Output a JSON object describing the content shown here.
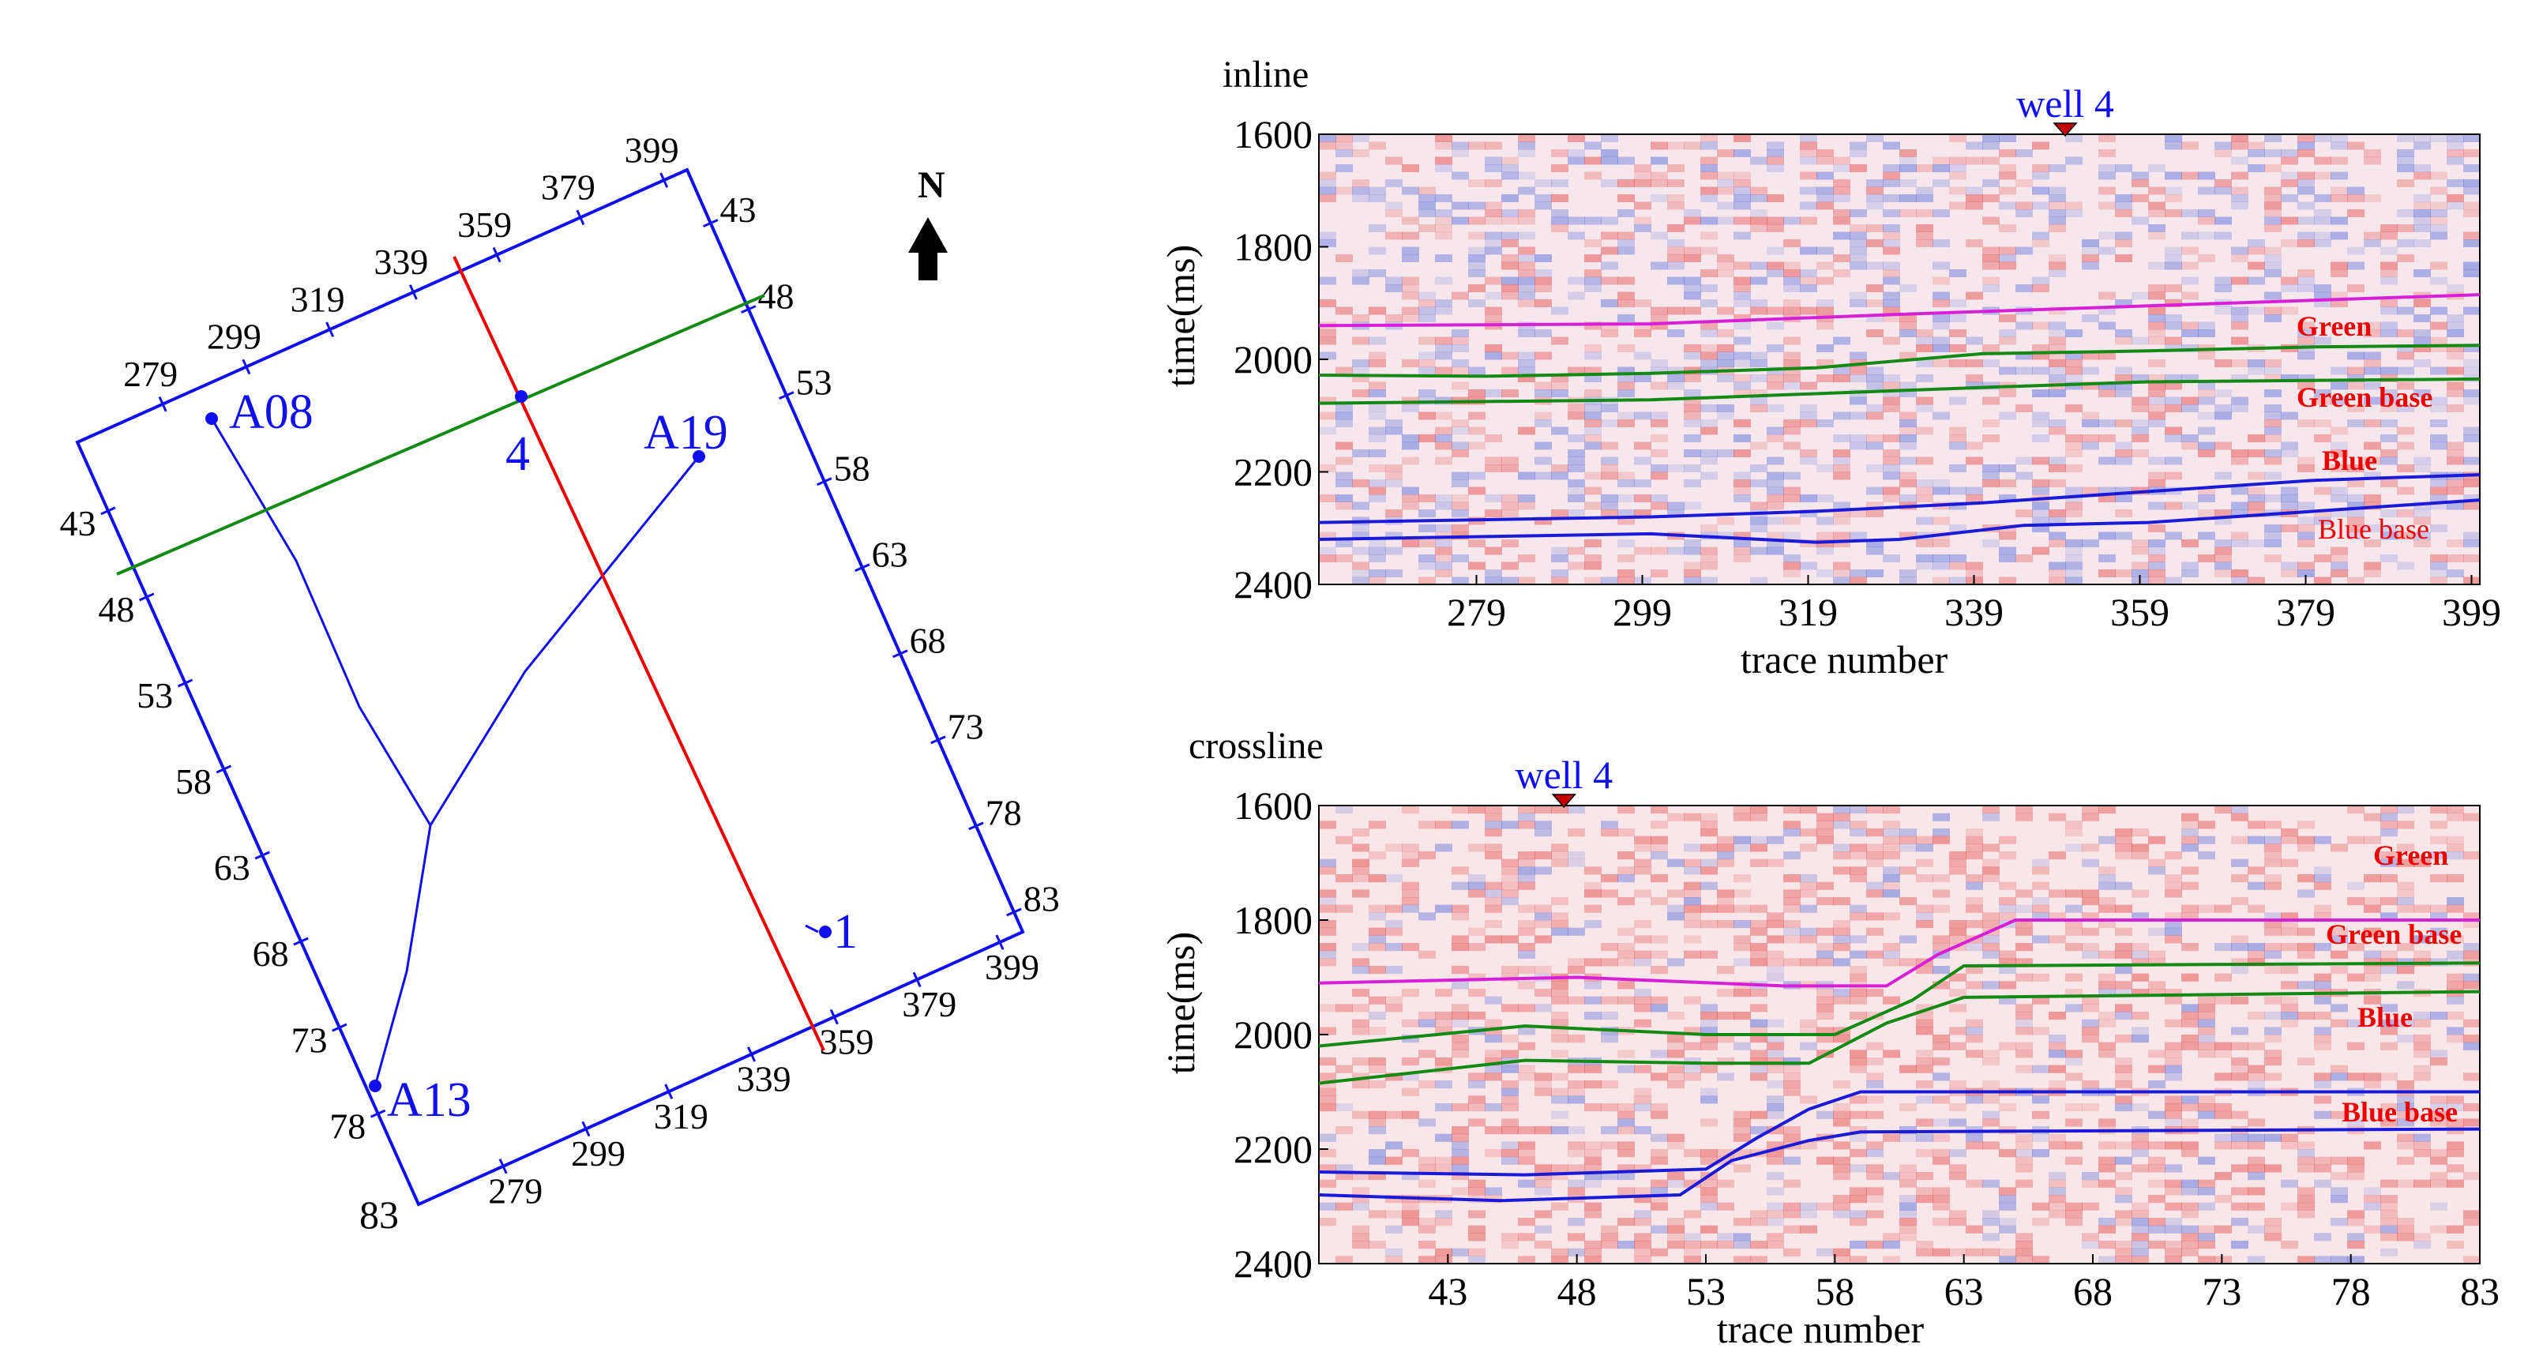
{
  "colors": {
    "blue": "#1010ee",
    "red": "#ee0000",
    "green": "#138a13",
    "magenta": "#d81fd8",
    "dark_blue": "#1a1ad8",
    "black": "#000000",
    "well_marker": "#c40000"
  },
  "map": {
    "north_label": "N",
    "wells": [
      {
        "id": "A08",
        "label": "A08"
      },
      {
        "id": "A19",
        "label": "A19"
      },
      {
        "id": "A13",
        "label": "A13"
      },
      {
        "id": "4",
        "label": "4"
      },
      {
        "id": "1",
        "label": "1"
      }
    ],
    "inline_ticks": [
      "279",
      "299",
      "319",
      "339",
      "359",
      "379",
      "399"
    ],
    "crossline_ticks": [
      "43",
      "48",
      "53",
      "58",
      "63",
      "68",
      "73",
      "78",
      "83"
    ],
    "corner_label": "83"
  },
  "chart_data": [
    {
      "type": "line",
      "panel": "inline",
      "title": "inline",
      "xlabel": "trace number",
      "ylabel": "time(ms)",
      "ylim": [
        1600,
        2400
      ],
      "y_inverted": true,
      "yticks": [
        1600,
        1800,
        2000,
        2200,
        2400
      ],
      "xlim": [
        260,
        400
      ],
      "xticks": [
        279,
        299,
        319,
        339,
        359,
        379,
        399
      ],
      "well_label": "well 4",
      "well_x": 350,
      "legend": [
        "Green",
        "Green base",
        "Blue",
        "Blue base"
      ],
      "series": [
        {
          "name": "Green (magenta horizon)",
          "color_key": "magenta",
          "x": [
            260,
            300,
            330,
            360,
            400
          ],
          "y": [
            1940,
            1937,
            1920,
            1905,
            1885
          ]
        },
        {
          "name": "Green",
          "color_key": "green",
          "x": [
            260,
            280,
            300,
            320,
            340,
            360,
            380,
            400
          ],
          "y": [
            2028,
            2030,
            2025,
            2015,
            1990,
            1985,
            1978,
            1975
          ]
        },
        {
          "name": "Green base",
          "color_key": "green",
          "x": [
            260,
            300,
            340,
            360,
            400
          ],
          "y": [
            2078,
            2072,
            2050,
            2040,
            2035
          ]
        },
        {
          "name": "Blue",
          "color_key": "dark_blue",
          "x": [
            260,
            300,
            320,
            340,
            360,
            380,
            400
          ],
          "y": [
            2290,
            2280,
            2270,
            2255,
            2235,
            2215,
            2205
          ]
        },
        {
          "name": "Blue base",
          "color_key": "dark_blue",
          "x": [
            260,
            300,
            320,
            330,
            345,
            360,
            380,
            400
          ],
          "y": [
            2320,
            2310,
            2325,
            2320,
            2295,
            2290,
            2270,
            2250
          ]
        }
      ]
    },
    {
      "type": "line",
      "panel": "crossline",
      "title": "crossline",
      "xlabel": "trace number",
      "ylabel": "time(ms)",
      "ylim": [
        1600,
        2400
      ],
      "y_inverted": true,
      "yticks": [
        1600,
        1800,
        2000,
        2200,
        2400
      ],
      "xlim": [
        38,
        83
      ],
      "xticks": [
        43,
        48,
        53,
        58,
        63,
        68,
        73,
        78,
        83
      ],
      "well_label": "well 4",
      "well_x": 47.5,
      "legend": [
        "Green",
        "Green base",
        "Blue",
        "Blue base"
      ],
      "series": [
        {
          "name": "Green (magenta horizon)",
          "color_key": "magenta",
          "x": [
            38,
            48,
            56,
            60,
            62,
            65,
            83
          ],
          "y": [
            1910,
            1900,
            1915,
            1915,
            1860,
            1800,
            1800
          ]
        },
        {
          "name": "Green",
          "color_key": "green",
          "x": [
            38,
            46,
            53,
            58,
            61,
            63,
            83
          ],
          "y": [
            2020,
            1985,
            2000,
            2000,
            1940,
            1880,
            1875
          ]
        },
        {
          "name": "Green base",
          "color_key": "green",
          "x": [
            38,
            46,
            53,
            57,
            60,
            63,
            83
          ],
          "y": [
            2085,
            2045,
            2050,
            2050,
            1980,
            1935,
            1925
          ]
        },
        {
          "name": "Blue",
          "color_key": "dark_blue",
          "x": [
            38,
            46,
            53,
            55,
            57,
            59,
            83
          ],
          "y": [
            2240,
            2245,
            2235,
            2180,
            2130,
            2100,
            2100
          ]
        },
        {
          "name": "Blue base",
          "color_key": "dark_blue",
          "x": [
            38,
            45,
            52,
            54,
            57,
            59,
            83
          ],
          "y": [
            2280,
            2290,
            2280,
            2220,
            2185,
            2170,
            2165
          ]
        }
      ]
    }
  ]
}
